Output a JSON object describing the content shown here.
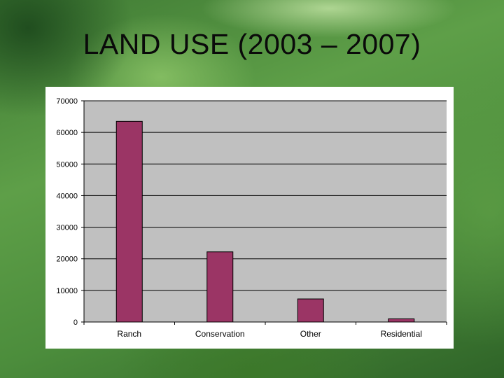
{
  "slide": {
    "title": "LAND USE (2003 – 2007)"
  },
  "colors": {
    "bar": "#9b3565",
    "plot_background": "#c0c0c0",
    "panel_background": "#ffffff",
    "gridline": "#000000"
  },
  "chart_data": {
    "type": "bar",
    "title": "",
    "xlabel": "",
    "ylabel": "",
    "categories": [
      "Ranch",
      "Conservation",
      "Other",
      "Residential"
    ],
    "values": [
      63500,
      22200,
      7300,
      1000
    ],
    "ylim": [
      0,
      70000
    ],
    "yticks": [
      0,
      10000,
      20000,
      30000,
      40000,
      50000,
      60000,
      70000
    ],
    "grid": "horizontal",
    "legend": "none"
  }
}
